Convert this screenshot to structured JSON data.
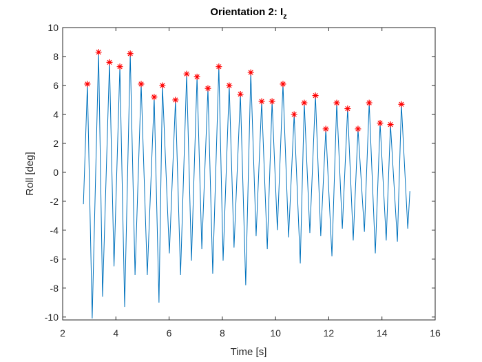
{
  "chart_data": {
    "type": "line",
    "title": "Orientation 2: I",
    "title_subscript": "z",
    "xlabel": "Time [s]",
    "ylabel": "Roll [deg]",
    "xlim": [
      2,
      16
    ],
    "ylim": [
      -10.2,
      10
    ],
    "xticks": [
      2,
      4,
      6,
      8,
      10,
      12,
      14,
      16
    ],
    "yticks": [
      -10,
      -8,
      -6,
      -4,
      -2,
      0,
      2,
      4,
      6,
      8,
      10
    ],
    "grid": false,
    "series": [
      {
        "type": "line",
        "color": "#0072bd",
        "x": [
          2.78,
          2.93,
          3.11,
          3.35,
          3.5,
          3.76,
          3.93,
          4.15,
          4.33,
          4.54,
          4.72,
          4.95,
          5.18,
          5.44,
          5.62,
          5.75,
          6.01,
          6.24,
          6.43,
          6.66,
          6.84,
          7.05,
          7.23,
          7.46,
          7.64,
          7.87,
          8.03,
          8.26,
          8.44,
          8.68,
          8.88,
          9.07,
          9.27,
          9.48,
          9.69,
          9.87,
          10.07,
          10.28,
          10.49,
          10.7,
          10.93,
          11.08,
          11.29,
          11.5,
          11.7,
          11.89,
          12.12,
          12.3,
          12.51,
          12.71,
          12.92,
          13.1,
          13.34,
          13.52,
          13.75,
          13.93,
          14.16,
          14.32,
          14.58,
          14.73,
          14.97,
          15.05
        ],
        "values": [
          -2.2,
          6.1,
          -10.1,
          8.3,
          -8.6,
          7.6,
          -6.5,
          7.3,
          -9.3,
          8.2,
          -7.1,
          6.1,
          -7.1,
          5.2,
          -9.0,
          6.0,
          -5.6,
          5.0,
          -7.1,
          6.8,
          -6.1,
          6.6,
          -5.3,
          5.8,
          -7.0,
          7.3,
          -6.1,
          6.0,
          -5.2,
          5.4,
          -7.8,
          6.9,
          -4.4,
          4.9,
          -5.3,
          4.9,
          -4.0,
          6.1,
          -4.5,
          4.0,
          -6.3,
          4.8,
          -4.2,
          5.3,
          -4.4,
          3.0,
          -5.8,
          4.8,
          -3.9,
          4.4,
          -4.7,
          3.0,
          -4.1,
          4.8,
          -5.6,
          3.4,
          -4.7,
          3.3,
          -4.8,
          4.7,
          -3.9,
          -1.3
        ]
      },
      {
        "type": "scatter",
        "marker": "asterisk",
        "color": "#ff0000",
        "x": [
          2.93,
          3.35,
          3.76,
          4.15,
          4.54,
          4.95,
          5.44,
          5.75,
          6.24,
          6.66,
          7.05,
          7.46,
          7.87,
          8.26,
          8.68,
          9.07,
          9.48,
          9.87,
          10.28,
          10.7,
          11.08,
          11.5,
          11.89,
          12.3,
          12.71,
          13.1,
          13.52,
          13.93,
          14.32,
          14.73
        ],
        "values": [
          6.1,
          8.3,
          7.6,
          7.3,
          8.2,
          6.1,
          5.2,
          6.0,
          5.0,
          6.8,
          6.6,
          5.8,
          7.3,
          6.0,
          5.4,
          6.9,
          4.9,
          4.9,
          6.1,
          4.0,
          4.8,
          5.3,
          3.0,
          4.8,
          4.4,
          3.0,
          4.8,
          3.4,
          3.3,
          4.7
        ]
      }
    ]
  }
}
